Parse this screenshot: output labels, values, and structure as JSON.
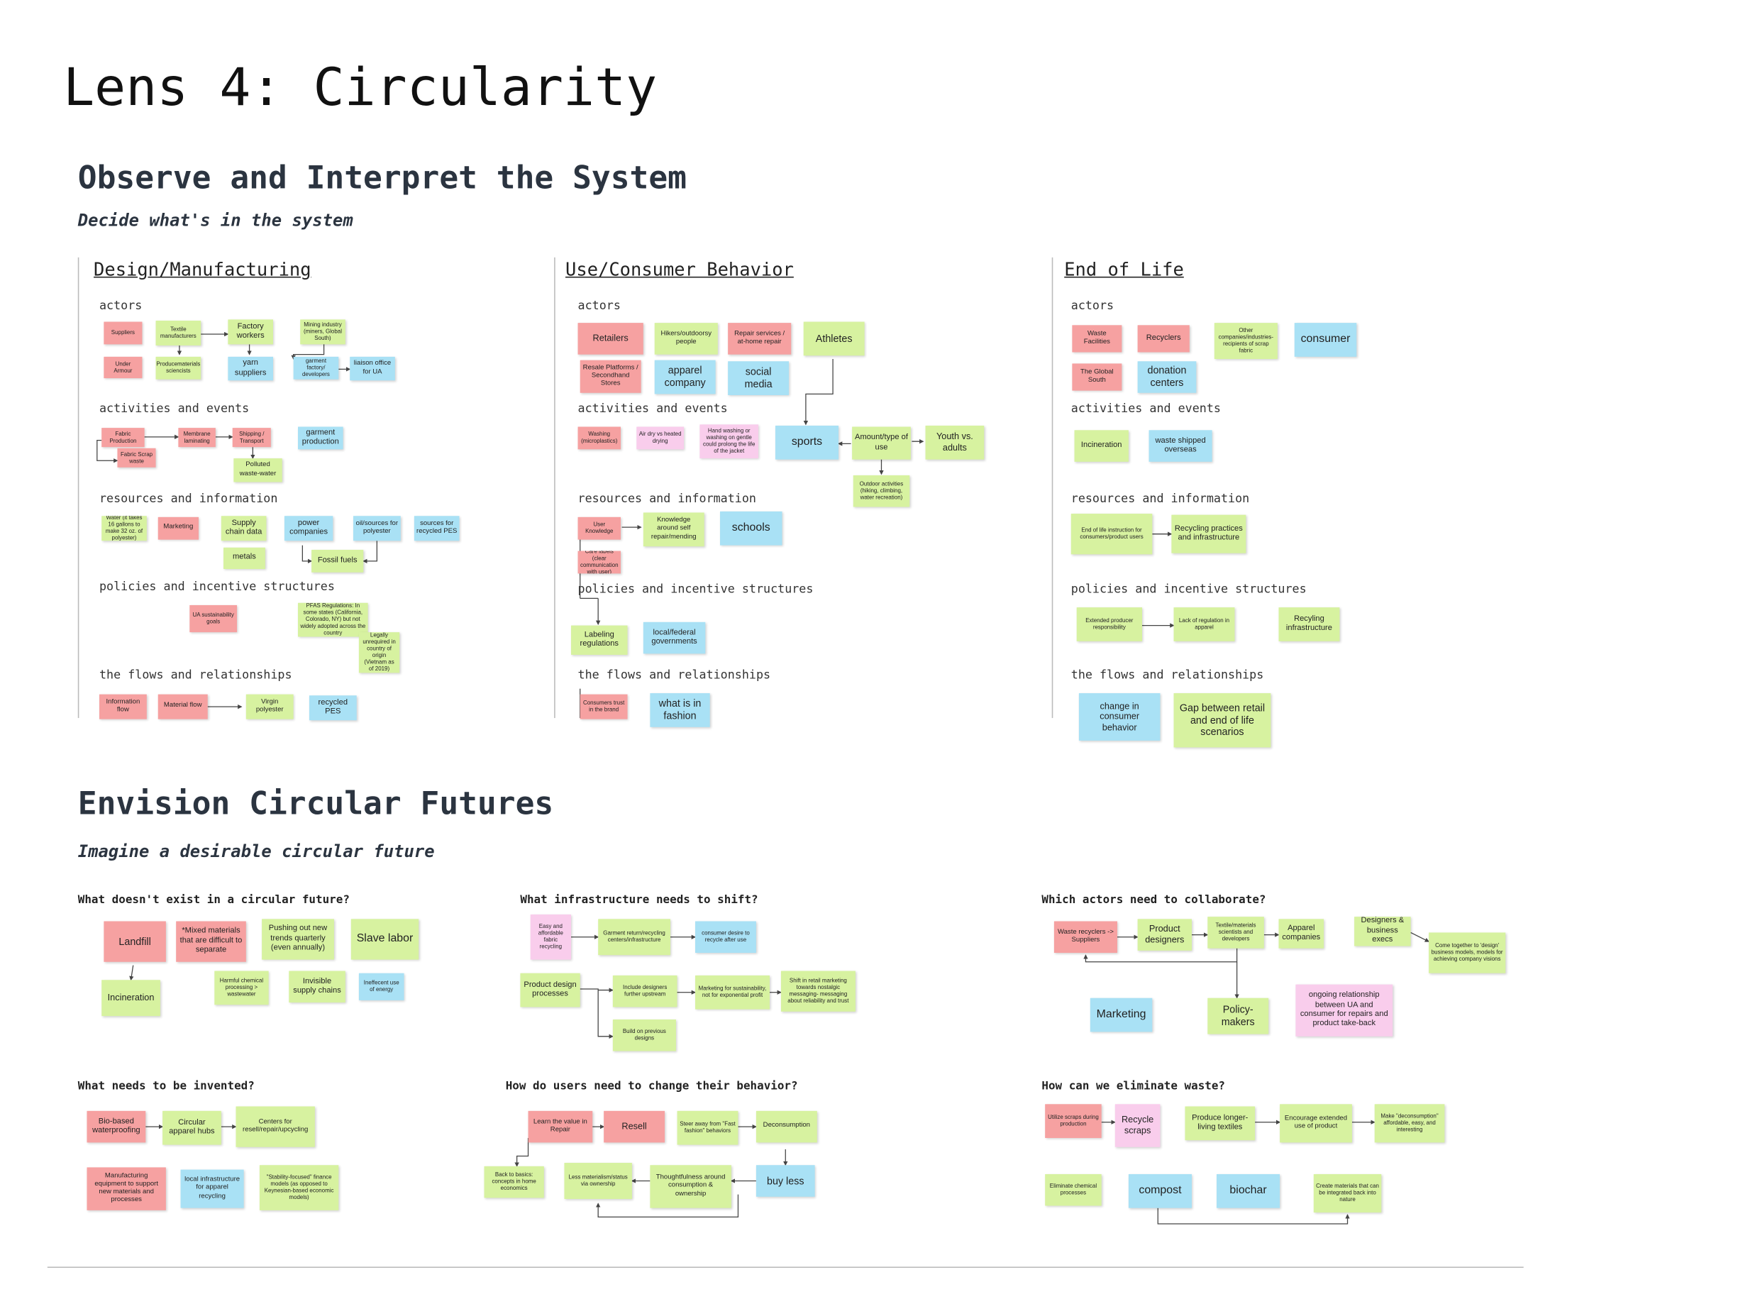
{
  "title": "Lens 4: Circularity",
  "observe": {
    "heading": "Observe and Interpret the System",
    "subheading": "Decide what's in the system",
    "columns": [
      {
        "heading": "Design/Manufacturing"
      },
      {
        "heading": "Use/Consumer Behavior"
      },
      {
        "heading": "End of Life"
      }
    ],
    "labels": {
      "actors": "actors",
      "activities": "activities and events",
      "resources": "resources and information",
      "policies": "policies and incentive structures",
      "flows": "the flows and relationships"
    }
  },
  "envision": {
    "heading": "Envision Circular Futures",
    "subheading": "Imagine a desirable circular future",
    "questions": {
      "q1": "What doesn't exist in a circular future?",
      "q2": "What infrastructure needs to shift?",
      "q3": "Which actors need to collaborate?",
      "q4": "What needs to be invented?",
      "q5": "How do users need to change their behavior?",
      "q6": "How can we eliminate waste?"
    }
  },
  "notes": [
    {
      "text": "Suppliers"
    },
    {
      "text": "Textile manufacturers"
    },
    {
      "text": "Factory workers"
    },
    {
      "text": "Mining industry (miners, Global South)"
    },
    {
      "text": "Under Armour"
    },
    {
      "text": "Producematerials sciencists"
    },
    {
      "text": "yarn suppliers"
    },
    {
      "text": "garment factory/ developers"
    },
    {
      "text": "liaison office for UA"
    },
    {
      "text": "Fabric Production"
    },
    {
      "text": "Fabric Scrap waste"
    },
    {
      "text": "Membrane laminating"
    },
    {
      "text": "Shipping / Transport"
    },
    {
      "text": "garment production"
    },
    {
      "text": "Polluted waste-water"
    },
    {
      "text": "Water (it takes 16 gallons to make 32 oz. of polyester)"
    },
    {
      "text": "Marketing"
    },
    {
      "text": "Supply chain data"
    },
    {
      "text": "power companies"
    },
    {
      "text": "oil/sources for polyester"
    },
    {
      "text": "sources for recycled PES"
    },
    {
      "text": "metals"
    },
    {
      "text": "Fossil fuels"
    },
    {
      "text": "UA sustainability goals"
    },
    {
      "text": "PFAS Regulations: In some states (California, Colorado, NY) but not widely adopted across the country"
    },
    {
      "text": "Legally unrequired in country of origin (Vietnam as of 2019)"
    },
    {
      "text": "Information flow"
    },
    {
      "text": "Material flow"
    },
    {
      "text": "Virgin polyester"
    },
    {
      "text": "recycled PES"
    },
    {
      "text": "Retailers"
    },
    {
      "text": "Hikers/outdoorsy people"
    },
    {
      "text": "Repair services / at-home repair"
    },
    {
      "text": "Athletes"
    },
    {
      "text": "Resale Platforms / Secondhand Stores"
    },
    {
      "text": "apparel company"
    },
    {
      "text": "social media"
    },
    {
      "text": "Washing (microplastics)"
    },
    {
      "text": "Air dry vs heated drying"
    },
    {
      "text": "Hand washing or washing on gentle could prolong the life of the jacket"
    },
    {
      "text": "sports"
    },
    {
      "text": "Amount/type of use"
    },
    {
      "text": "Youth vs. adults"
    },
    {
      "text": "Outdoor activities (hiking, climbing, water recreation)"
    },
    {
      "text": "User Knowledge"
    },
    {
      "text": "Knowledge around self repair/mending"
    },
    {
      "text": "schools"
    },
    {
      "text": "Care labels (clear communication with user)"
    },
    {
      "text": "Labeling regulations"
    },
    {
      "text": "local/federal governments"
    },
    {
      "text": "Consumers trust in the brand"
    },
    {
      "text": "what is in fashion"
    },
    {
      "text": "Waste Facilities"
    },
    {
      "text": "Recyclers"
    },
    {
      "text": "Other companies/industries- recipients of scrap fabric"
    },
    {
      "text": "consumer"
    },
    {
      "text": "The Global South"
    },
    {
      "text": "donation centers"
    },
    {
      "text": "Incineration"
    },
    {
      "text": "waste shipped overseas"
    },
    {
      "text": "End of life instruction for consumers/product users"
    },
    {
      "text": "Recycling practices and infrastructure"
    },
    {
      "text": "Extended producer responsibility"
    },
    {
      "text": "Lack of regulation in apparel"
    },
    {
      "text": "Recyling infrastructure"
    },
    {
      "text": "change in consumer behavior"
    },
    {
      "text": "Gap between retail and end of life scenarios"
    },
    {
      "text": "Landfill"
    },
    {
      "text": "*Mixed materials that are difficult to separate"
    },
    {
      "text": "Pushing out new trends quarterly (even annually)"
    },
    {
      "text": "Slave labor"
    },
    {
      "text": "Incineration"
    },
    {
      "text": "Harmful chemical processing > wastewater"
    },
    {
      "text": "Invisible supply chains"
    },
    {
      "text": "Ineffecent use of energy"
    },
    {
      "text": "Easy and affordable fabric recycling"
    },
    {
      "text": "Garment return/recycling centers/infrastructure"
    },
    {
      "text": "consumer desire to recycle after use"
    },
    {
      "text": "Product design processes"
    },
    {
      "text": "Include designers further upstream"
    },
    {
      "text": "Marketing for sustainability, not for exponential profit"
    },
    {
      "text": "Shift in retail marketing towards nostalgic messaging- messaging about reliability and trust"
    },
    {
      "text": "Build on previous designs"
    },
    {
      "text": "Waste recyclers -> Suppliers"
    },
    {
      "text": "Product designers"
    },
    {
      "text": "Textile/materials scientists and developers"
    },
    {
      "text": "Apparel companies"
    },
    {
      "text": "Designers & business execs"
    },
    {
      "text": "Come together to 'design' business models, models for achieving company visions"
    },
    {
      "text": "Marketing"
    },
    {
      "text": "Policy-makers"
    },
    {
      "text": "ongoing relationship between UA and consumer for repairs and product take-back"
    },
    {
      "text": "Bio-based waterproofing"
    },
    {
      "text": "Circular apparel hubs"
    },
    {
      "text": "Centers for resell/repair/upcycling"
    },
    {
      "text": "Manufacturing equipment to support new materials and processes"
    },
    {
      "text": "local infrastructure for apparel recycling"
    },
    {
      "text": "\"Stability-focused\" finance models (as opposed to Keynesian-based economic models)"
    },
    {
      "text": "Learn the value in Repair"
    },
    {
      "text": "Resell"
    },
    {
      "text": "Steer away from \"Fast fashion\" behaviors"
    },
    {
      "text": "Deconsumption"
    },
    {
      "text": "Back to basics: concepts in home economics"
    },
    {
      "text": "Less materialism/status via ownership"
    },
    {
      "text": "Thoughtfulness around consumption & ownership"
    },
    {
      "text": "buy less"
    },
    {
      "text": "Utilize scraps during production"
    },
    {
      "text": "Recycle scraps"
    },
    {
      "text": "Produce longer-living textiles"
    },
    {
      "text": "Encourage extended use of product"
    },
    {
      "text": "Make \"deconsumption\" affordable, easy, and interesting"
    },
    {
      "text": "Eliminate chemical processes"
    },
    {
      "text": "compost"
    },
    {
      "text": "biochar"
    },
    {
      "text": "Create materials that can be integrated back into nature"
    }
  ]
}
